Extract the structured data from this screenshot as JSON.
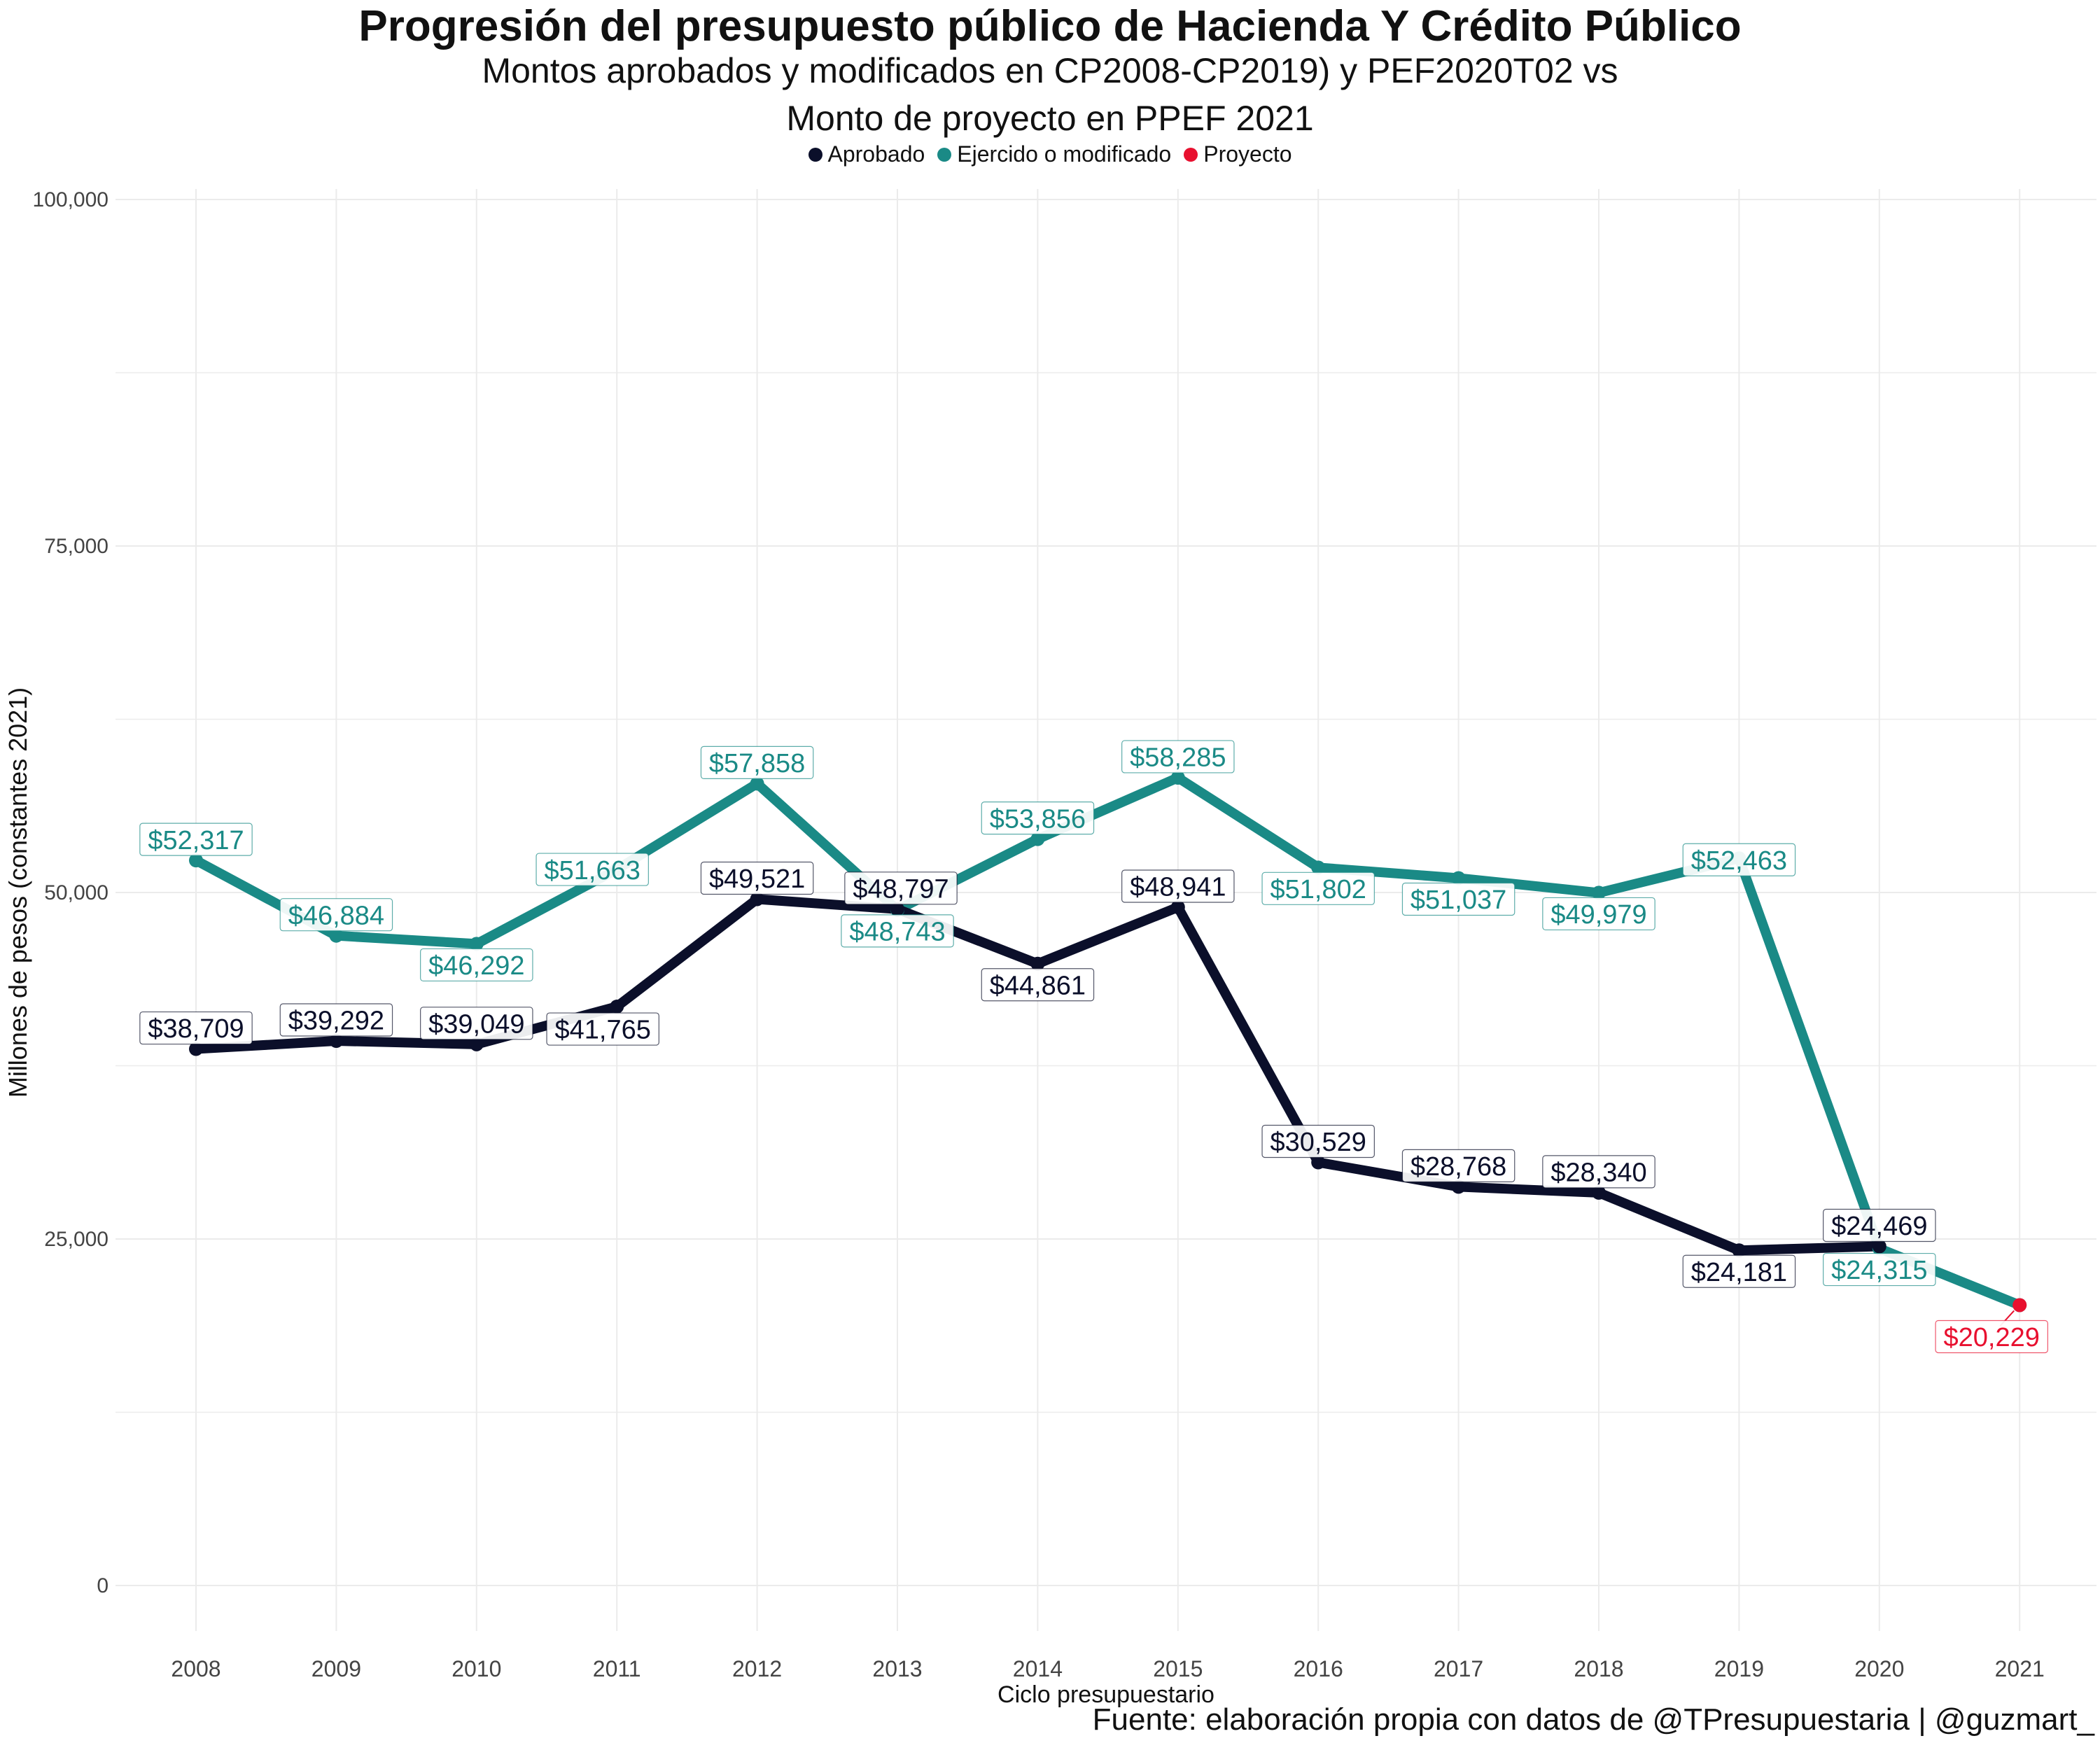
{
  "title": "Progresión del presupuesto público de Hacienda Y Crédito Público",
  "subtitle_line1": "Montos aprobados y modificados en CP2008-CP2019) y PEF2020T02 vs",
  "subtitle_line2": "Monto de proyecto en PPEF 2021",
  "caption": "Fuente: elaboración propia con datos de @TPresupuestaria | @guzmart_",
  "chart_data": {
    "type": "line",
    "xlabel": "Ciclo presupuestario",
    "ylabel": "Millones de pesos (constantes 2021)",
    "ylim": [
      0,
      100000
    ],
    "yticks": [
      0,
      25000,
      50000,
      75000,
      100000
    ],
    "ytick_labels": [
      "0",
      "25,000",
      "50,000",
      "75,000",
      "100,000"
    ],
    "categories": [
      "2008",
      "2009",
      "2010",
      "2011",
      "2012",
      "2013",
      "2014",
      "2015",
      "2016",
      "2017",
      "2018",
      "2019",
      "2020",
      "2021"
    ],
    "grid": true,
    "legend_position": "top",
    "series": [
      {
        "name": "Aprobado",
        "color": "#0b0f2a",
        "values": [
          38709,
          39292,
          39049,
          41765,
          49521,
          48797,
          44861,
          48941,
          30529,
          28768,
          28340,
          24181,
          24469,
          null
        ],
        "labels": [
          "$38,709",
          "$39,292",
          "$39,049",
          "$41,765",
          "$49,521",
          "$48,797",
          "$44,861",
          "$48,941",
          "$30,529",
          "$28,768",
          "$28,340",
          "$24,181",
          "$24,469",
          null
        ]
      },
      {
        "name": "Ejercido o modificado",
        "color": "#1a8a86",
        "values": [
          52317,
          46884,
          46292,
          51663,
          57858,
          48743,
          53856,
          58285,
          51802,
          51037,
          49979,
          52463,
          24315,
          20229
        ],
        "labels": [
          "$52,317",
          "$46,884",
          "$46,292",
          "$51,663",
          "$57,858",
          "$48,743",
          "$53,856",
          "$58,285",
          "$51,802",
          "$51,037",
          "$49,979",
          "$52,463",
          "$24,315",
          null
        ]
      },
      {
        "name": "Proyecto",
        "color": "#e8102f",
        "values": [
          null,
          null,
          null,
          null,
          null,
          null,
          null,
          null,
          null,
          null,
          null,
          null,
          null,
          20229
        ],
        "labels": [
          null,
          null,
          null,
          null,
          null,
          null,
          null,
          null,
          null,
          null,
          null,
          null,
          null,
          "$20,229"
        ]
      }
    ]
  }
}
